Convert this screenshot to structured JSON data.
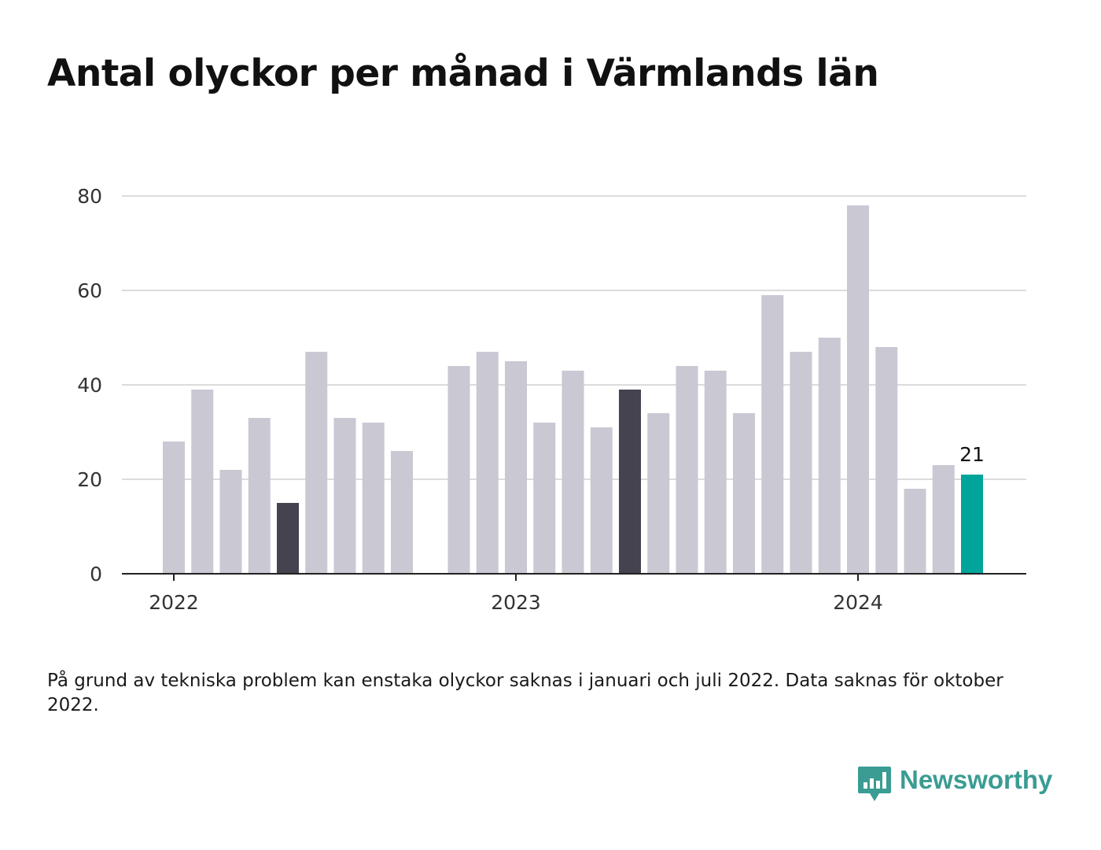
{
  "title": "Antal olyckor per månad i Värmlands län",
  "footnote": "På grund av tekniska problem kan enstaka olyckor saknas i januari och juli 2022. Data saknas för oktober 2022.",
  "brand": {
    "name": "Newsworthy",
    "icon": "bar-chart-speech-bubble-icon",
    "color": "#3a9c93"
  },
  "chart_data": {
    "type": "bar",
    "categories": [
      "2022-01",
      "2022-02",
      "2022-03",
      "2022-04",
      "2022-05",
      "2022-06",
      "2022-07",
      "2022-08",
      "2022-09",
      "2022-10",
      "2022-11",
      "2022-12",
      "2023-01",
      "2023-02",
      "2023-03",
      "2023-04",
      "2023-05",
      "2023-06",
      "2023-07",
      "2023-08",
      "2023-09",
      "2023-10",
      "2023-11",
      "2023-12",
      "2024-01",
      "2024-02",
      "2024-03",
      "2024-04",
      "2024-05"
    ],
    "values": [
      28,
      39,
      22,
      33,
      15,
      47,
      33,
      32,
      26,
      null,
      44,
      47,
      45,
      32,
      43,
      31,
      39,
      34,
      44,
      43,
      34,
      59,
      47,
      50,
      78,
      48,
      18,
      23,
      21
    ],
    "highlighted": {
      "2022-05": "#44434f",
      "2023-05": "#44434f",
      "2024-05": "#00a49b"
    },
    "default_color": "#c9c8d3",
    "value_label": {
      "category": "2024-05",
      "text": "21"
    },
    "ylim": [
      0,
      80
    ],
    "yticks": [
      0,
      20,
      40,
      60,
      80
    ],
    "xticks": [
      {
        "category": "2022-01",
        "label": "2022"
      },
      {
        "category": "2023-01",
        "label": "2023"
      },
      {
        "category": "2024-01",
        "label": "2024"
      }
    ],
    "grid": true,
    "xlabel": "",
    "ylabel": ""
  }
}
